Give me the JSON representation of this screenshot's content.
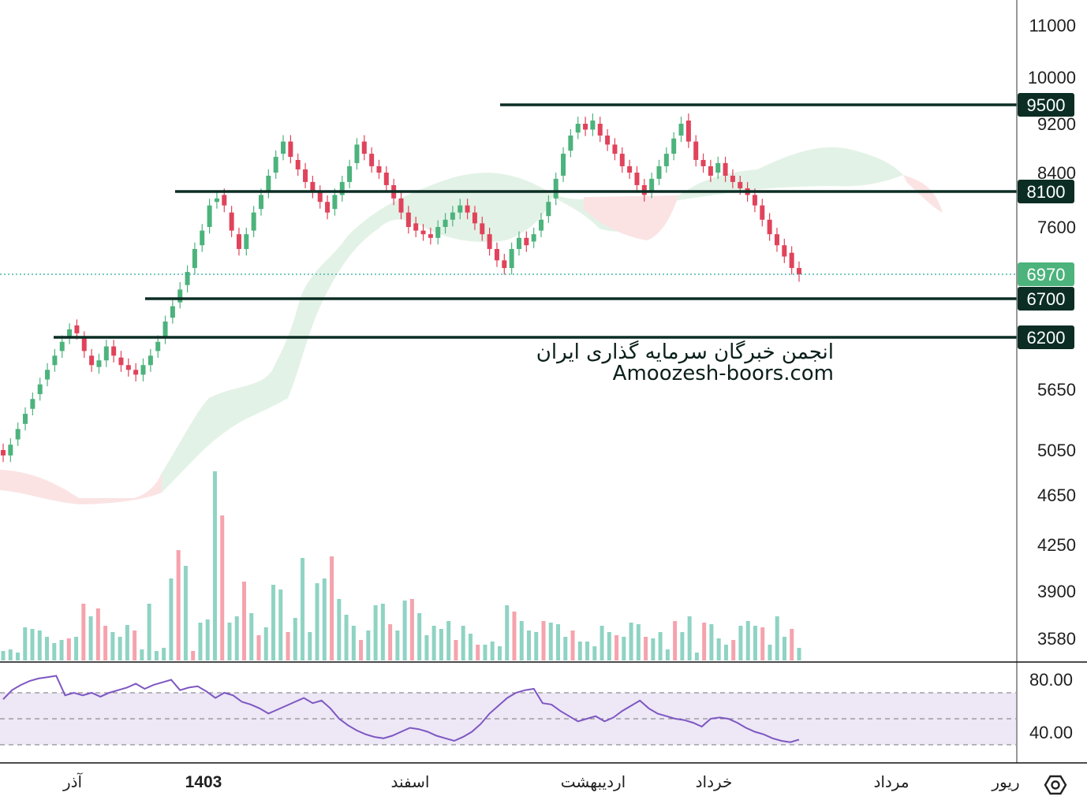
{
  "chart_data": {
    "type": "candlestick",
    "price_axis": {
      "ticks": [
        11000,
        10000,
        9200,
        8400,
        7600,
        5650,
        5050,
        4650,
        4250,
        3900,
        3580
      ],
      "scale": "log"
    },
    "levels": [
      {
        "label": "9500",
        "value": 9500
      },
      {
        "label": "8100",
        "value": 8100
      },
      {
        "label": "6700",
        "value": 6700
      },
      {
        "label": "6200",
        "value": 6200
      }
    ],
    "last_price": {
      "label": "6970",
      "value": 6970
    },
    "time_axis": [
      {
        "label": "آذر",
        "bold": false
      },
      {
        "label": "1403",
        "bold": true
      },
      {
        "label": "اسفند",
        "bold": false
      },
      {
        "label": "اردیبهشت",
        "bold": false
      },
      {
        "label": "خرداد",
        "bold": false
      },
      {
        "label": "مرداد",
        "bold": false
      },
      {
        "label": "ریور",
        "bold": false
      }
    ],
    "rsi": {
      "ticks": [
        "80.00",
        "40.00"
      ],
      "band": [
        70,
        30
      ],
      "mid": 50
    },
    "colors": {
      "up": "#4cb37c",
      "down": "#e0435b",
      "level_line": "#0b2d24",
      "rsi": "#7e57c2",
      "cloud_up": "#e3f2e6",
      "cloud_down": "#fbe3e4"
    }
  },
  "watermark": {
    "line1": "انجمن خبرگان سرمایه گذاری ایران",
    "line2": "Amoozesh-boors.com"
  },
  "settings_icon": "gear-hex-icon"
}
